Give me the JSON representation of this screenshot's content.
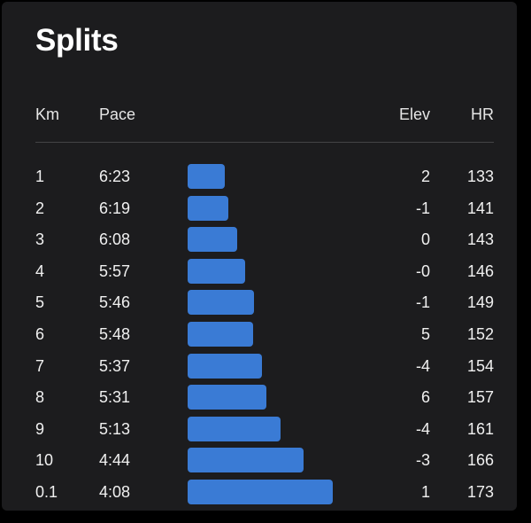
{
  "title": "Splits",
  "headers": {
    "km": "Km",
    "pace": "Pace",
    "elev": "Elev",
    "hr": "HR"
  },
  "bar_color": "#3a7bd5",
  "splits": [
    {
      "km": "1",
      "pace": "6:23",
      "elev": "2",
      "hr": "133"
    },
    {
      "km": "2",
      "pace": "6:19",
      "elev": "-1",
      "hr": "141"
    },
    {
      "km": "3",
      "pace": "6:08",
      "elev": "0",
      "hr": "143"
    },
    {
      "km": "4",
      "pace": "5:57",
      "elev": "-0",
      "hr": "146"
    },
    {
      "km": "5",
      "pace": "5:46",
      "elev": "-1",
      "hr": "149"
    },
    {
      "km": "6",
      "pace": "5:48",
      "elev": "5",
      "hr": "152"
    },
    {
      "km": "7",
      "pace": "5:37",
      "elev": "-4",
      "hr": "154"
    },
    {
      "km": "8",
      "pace": "5:31",
      "elev": "6",
      "hr": "157"
    },
    {
      "km": "9",
      "pace": "5:13",
      "elev": "-4",
      "hr": "161"
    },
    {
      "km": "10",
      "pace": "4:44",
      "elev": "-3",
      "hr": "166"
    },
    {
      "km": "0.1",
      "pace": "4:08",
      "elev": "1",
      "hr": "173"
    }
  ]
}
